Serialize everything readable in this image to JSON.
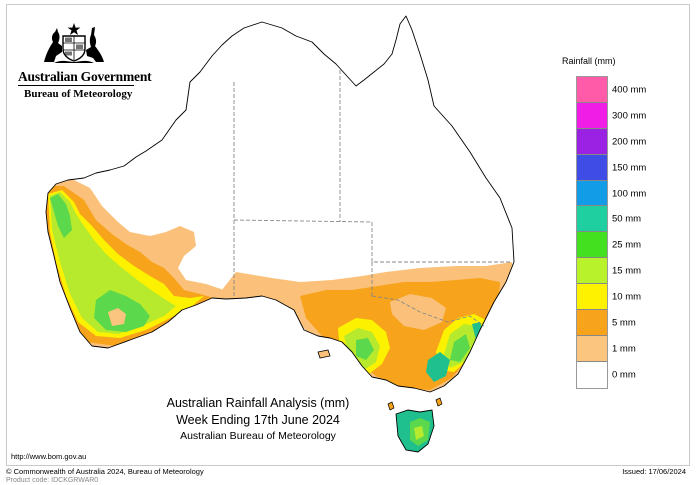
{
  "header": {
    "org_name": "Australian Government",
    "agency_name": "Bureau of Meteorology"
  },
  "icons": {
    "crest": "coat-of-arms-icon"
  },
  "map": {
    "title_line1": "Australian Rainfall Analysis (mm)",
    "title_line2": "Week Ending 17th June 2024",
    "title_line3": "Australian Bureau of Meteorology",
    "region": "Australia",
    "colors": {
      "land_dry": "#ffffff",
      "r1": "#fbc17a",
      "r5": "#f7a31b",
      "r10": "#fcf200",
      "r15": "#b7ea2c",
      "r25": "#5bd84b",
      "r50": "#1fc08e",
      "coast": "#000000",
      "border": "#888888"
    }
  },
  "legend": {
    "title": "Rainfall (mm)",
    "items": [
      {
        "label": "400 mm",
        "color": "#ff5ba8"
      },
      {
        "label": "300 mm",
        "color": "#ef1de6"
      },
      {
        "label": "200 mm",
        "color": "#9b21e3"
      },
      {
        "label": "150 mm",
        "color": "#3f4ce5"
      },
      {
        "label": "100 mm",
        "color": "#129ce8"
      },
      {
        "label": "50 mm",
        "color": "#1fcfa0"
      },
      {
        "label": "25 mm",
        "color": "#43e020"
      },
      {
        "label": "15 mm",
        "color": "#b7f22a"
      },
      {
        "label": "10 mm",
        "color": "#fff200"
      },
      {
        "label": "5 mm",
        "color": "#f7a31b"
      },
      {
        "label": "1 mm",
        "color": "#fcc57f"
      },
      {
        "label": "0 mm",
        "color": "#ffffff"
      }
    ]
  },
  "footer": {
    "url": "http://www.bom.gov.au",
    "copyright": "© Commonwealth of Australia 2024, Bureau of Meteorology",
    "issued": "Issued: 17/06/2024",
    "product_code": "Product code: IDCKGRWAR0"
  }
}
